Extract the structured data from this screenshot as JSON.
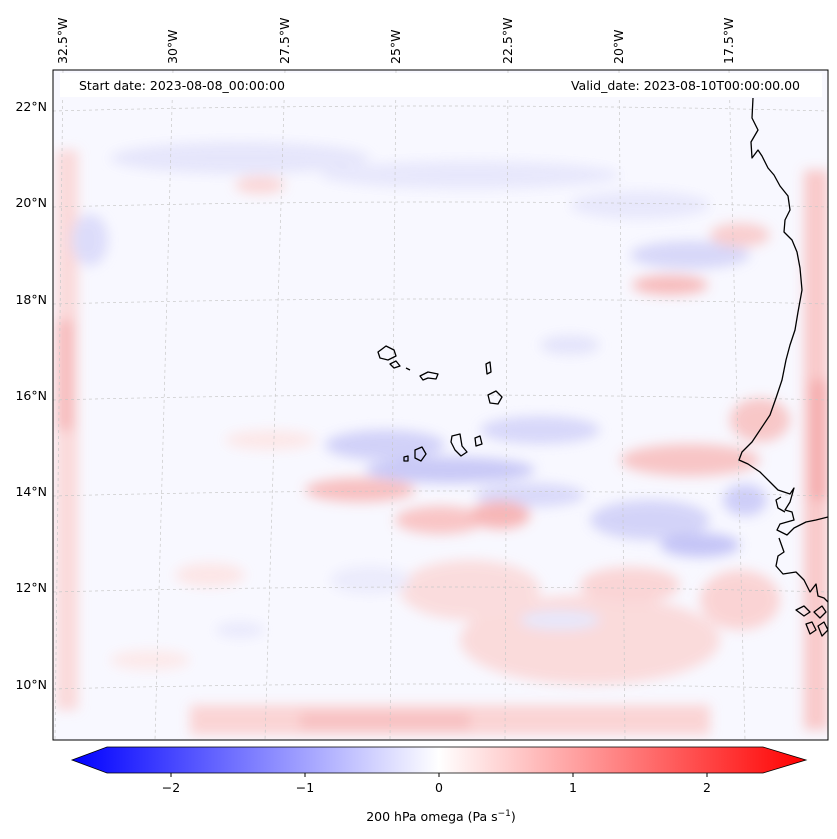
{
  "header": {
    "start_date": "Start date: 2023-08-08_00:00:00",
    "valid_date": "Valid_date: 2023-08-10T00:00:00.00"
  },
  "map": {
    "longitude_labels": [
      "32.5°W",
      "30°W",
      "27.5°W",
      "25°W",
      "22.5°W",
      "20°W",
      "17.5°W"
    ],
    "latitude_labels": [
      "22°N",
      "20°N",
      "18°N",
      "16°N",
      "14°N",
      "12°N",
      "10°N"
    ],
    "gridlines": true,
    "coastlines": true
  },
  "colorbar": {
    "label_main": "200 hPa omega (Pa s",
    "label_sup": "−1",
    "label_end": ")",
    "ticks": [
      "−2",
      "−1",
      "0",
      "1",
      "2"
    ],
    "vmin": -2.5,
    "vmax": 2.5,
    "colormap": "bwr",
    "color_low": "#0000ff",
    "color_mid": "#ffffff",
    "color_high": "#ff0000",
    "extend": "both"
  }
}
